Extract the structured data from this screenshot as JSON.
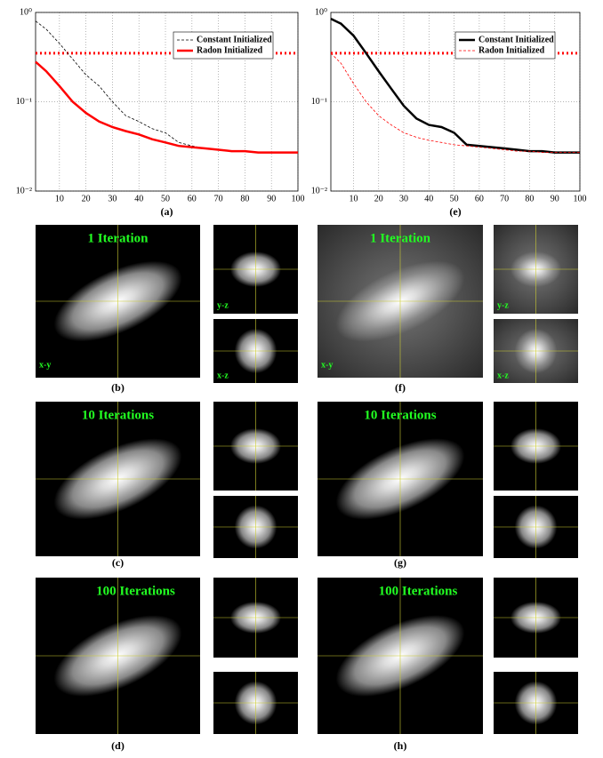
{
  "chart_data": [
    {
      "type": "line",
      "caption": "(a)",
      "log_y": true,
      "grid": true,
      "legend": "upper right",
      "x": [
        1,
        5,
        10,
        15,
        20,
        25,
        30,
        35,
        40,
        45,
        50,
        55,
        60,
        65,
        70,
        75,
        80,
        85,
        90,
        95,
        100
      ],
      "xlim": [
        1,
        100
      ],
      "xticks": [
        10,
        20,
        30,
        40,
        50,
        60,
        70,
        80,
        90,
        100
      ],
      "ylim": [
        0.01,
        1
      ],
      "yticks": [
        {
          "value": 1,
          "label": "10⁰"
        },
        {
          "value": 0.1,
          "label": "10⁻¹"
        },
        {
          "value": 0.01,
          "label": "10⁻²"
        }
      ],
      "reference_line": {
        "value": 0.35,
        "color": "#ff0000"
      },
      "series": [
        {
          "name": "Constant Initialized",
          "color": "#000000",
          "dash": true,
          "width": 0.8,
          "values": [
            0.8,
            0.65,
            0.45,
            0.3,
            0.2,
            0.15,
            0.1,
            0.07,
            0.06,
            0.05,
            0.045,
            0.035,
            0.032,
            0.03,
            0.029,
            0.028,
            0.028,
            0.027,
            0.027,
            0.027,
            0.027
          ]
        },
        {
          "name": "Radon Initialized",
          "color": "#ff0000",
          "dash": false,
          "width": 2.5,
          "values": [
            0.28,
            0.22,
            0.15,
            0.1,
            0.075,
            0.06,
            0.052,
            0.047,
            0.043,
            0.038,
            0.035,
            0.032,
            0.031,
            0.03,
            0.029,
            0.028,
            0.028,
            0.027,
            0.027,
            0.027,
            0.027
          ]
        }
      ]
    },
    {
      "type": "line",
      "caption": "(e)",
      "log_y": true,
      "grid": true,
      "legend": "upper right",
      "x": [
        1,
        5,
        10,
        15,
        20,
        25,
        30,
        35,
        40,
        45,
        50,
        55,
        60,
        65,
        70,
        75,
        80,
        85,
        90,
        95,
        100
      ],
      "xlim": [
        1,
        100
      ],
      "xticks": [
        10,
        20,
        30,
        40,
        50,
        60,
        70,
        80,
        90,
        100
      ],
      "ylim": [
        0.01,
        1
      ],
      "yticks": [
        {
          "value": 1,
          "label": "10⁰"
        },
        {
          "value": 0.1,
          "label": "10⁻¹"
        },
        {
          "value": 0.01,
          "label": "10⁻²"
        }
      ],
      "reference_line": {
        "value": 0.35,
        "color": "#ff0000"
      },
      "series": [
        {
          "name": "Constant Initialized",
          "color": "#000000",
          "dash": false,
          "width": 2.5,
          "values": [
            0.85,
            0.75,
            0.55,
            0.35,
            0.22,
            0.14,
            0.09,
            0.065,
            0.055,
            0.052,
            0.045,
            0.033,
            0.032,
            0.031,
            0.03,
            0.029,
            0.028,
            0.028,
            0.027,
            0.027,
            0.027
          ]
        },
        {
          "name": "Radon Initialized",
          "color": "#ff0000",
          "dash": true,
          "width": 0.8,
          "values": [
            0.35,
            0.27,
            0.16,
            0.1,
            0.07,
            0.055,
            0.045,
            0.04,
            0.037,
            0.035,
            0.033,
            0.032,
            0.031,
            0.03,
            0.029,
            0.028,
            0.028,
            0.027,
            0.027,
            0.027,
            0.027
          ]
        }
      ]
    }
  ],
  "panels": [
    {
      "caption": "(b)",
      "title": "1 Iteration",
      "labels": [
        "x-y",
        "y-z",
        "x-z"
      ]
    },
    {
      "caption": "(c)",
      "title": "10 Iterations"
    },
    {
      "caption": "(d)",
      "title": "100 Iterations"
    },
    {
      "caption": "(f)",
      "title": "1 Iteration",
      "labels": [
        "x-y",
        "y-z",
        "x-z"
      ]
    },
    {
      "caption": "(g)",
      "title": "10 Iterations"
    },
    {
      "caption": "(h)",
      "title": "100 Iterations"
    }
  ]
}
